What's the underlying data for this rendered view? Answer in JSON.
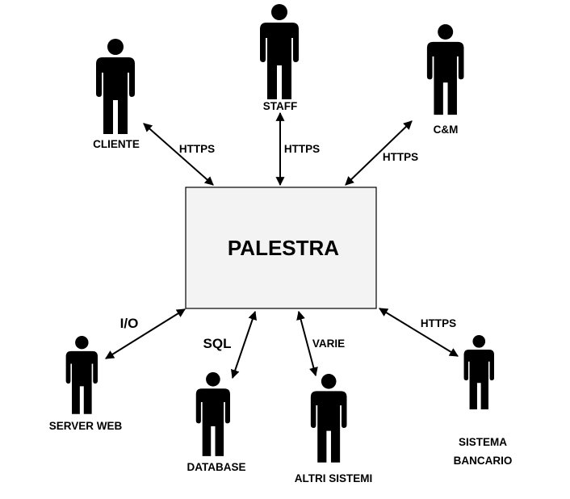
{
  "center": {
    "label": "PALESTRA",
    "fill": "#f3f3f3",
    "stroke": "#000000"
  },
  "actors": [
    {
      "id": "cliente",
      "label": [
        "CLIENTE"
      ],
      "icon": "person-icon"
    },
    {
      "id": "staff",
      "label": [
        "STAFF"
      ],
      "icon": "person-icon"
    },
    {
      "id": "cm",
      "label": [
        "C&M"
      ],
      "icon": "person-icon"
    },
    {
      "id": "server-web",
      "label": [
        "SERVER WEB"
      ],
      "icon": "person-icon"
    },
    {
      "id": "database",
      "label": [
        "DATABASE"
      ],
      "icon": "person-icon"
    },
    {
      "id": "altri-sistemi",
      "label": [
        "ALTRI SISTEMI"
      ],
      "icon": "person-icon"
    },
    {
      "id": "sistema-bancario",
      "label": [
        "SISTEMA",
        "BANCARIO"
      ],
      "icon": "person-icon"
    }
  ],
  "connections": [
    {
      "actor": "cliente",
      "protocol": "HTTPS"
    },
    {
      "actor": "staff",
      "protocol": "HTTPS"
    },
    {
      "actor": "cm",
      "protocol": "HTTPS"
    },
    {
      "actor": "server-web",
      "protocol": "I/O"
    },
    {
      "actor": "database",
      "protocol": "SQL"
    },
    {
      "actor": "altri-sistemi",
      "protocol": "VARIE"
    },
    {
      "actor": "sistema-bancario",
      "protocol": "HTTPS"
    }
  ]
}
